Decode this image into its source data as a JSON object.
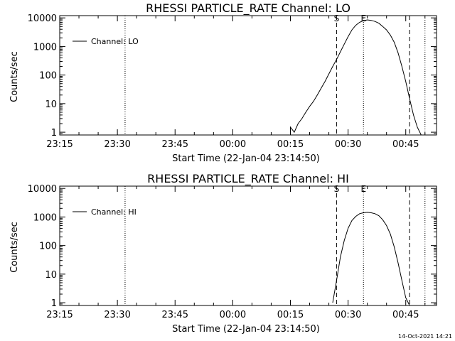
{
  "footer": {
    "timestamp": "14-Oct-2021 14:21"
  },
  "chart_data": [
    {
      "type": "line",
      "title": "RHESSI PARTICLE_RATE Channel: LO",
      "xlabel": "Start Time (22-Jan-04 23:14:50)",
      "ylabel": "Counts/sec",
      "yscale": "log",
      "xlim": [
        "23:15",
        "00:53"
      ],
      "ylim": [
        0.8,
        12000
      ],
      "x_ticks": [
        "23:15",
        "23:30",
        "23:45",
        "00:00",
        "00:15",
        "00:30",
        "00:45"
      ],
      "y_ticks": [
        "1",
        "10",
        "100",
        "1000",
        "10000"
      ],
      "legend": {
        "position": "top-left",
        "entries": [
          "Channel: LO"
        ]
      },
      "markers": {
        "S": "00:27",
        "E": "00:34"
      },
      "dashed_lines": [
        "00:27",
        "00:46"
      ],
      "dotted_lines": [
        "23:32",
        "00:34",
        "00:50"
      ],
      "series": [
        {
          "name": "Channel: LO",
          "x": [
            "00:15",
            "00:15",
            "00:16",
            "00:17",
            "00:18",
            "00:19",
            "00:20",
            "00:21",
            "00:22",
            "00:23",
            "00:24",
            "00:25",
            "00:26",
            "00:27",
            "00:28",
            "00:29",
            "00:30",
            "00:31",
            "00:32",
            "00:33",
            "00:34",
            "00:35",
            "00:36",
            "00:37",
            "00:38",
            "00:39",
            "00:40",
            "00:41",
            "00:42",
            "00:43",
            "00:44",
            "00:45",
            "00:46",
            "00:47",
            "00:48",
            "00:49"
          ],
          "y": [
            1,
            1.5,
            1,
            2,
            3,
            5,
            8,
            12,
            20,
            35,
            60,
            110,
            200,
            350,
            650,
            1200,
            2200,
            3800,
            5500,
            7000,
            8000,
            8500,
            8200,
            7500,
            6500,
            5000,
            3800,
            2500,
            1400,
            600,
            200,
            60,
            15,
            4,
            1.5,
            0.8
          ]
        }
      ]
    },
    {
      "type": "line",
      "title": "RHESSI PARTICLE_RATE Channel: HI",
      "xlabel": "Start Time (22-Jan-04 23:14:50)",
      "ylabel": "Counts/sec",
      "yscale": "log",
      "xlim": [
        "23:15",
        "00:53"
      ],
      "ylim": [
        0.8,
        12000
      ],
      "x_ticks": [
        "23:15",
        "23:30",
        "23:45",
        "00:00",
        "00:15",
        "00:30",
        "00:45"
      ],
      "y_ticks": [
        "1",
        "10",
        "100",
        "1000",
        "10000"
      ],
      "legend": {
        "position": "top-left",
        "entries": [
          "Channel: HI"
        ]
      },
      "markers": {
        "S": "00:27",
        "E": "00:34"
      },
      "dashed_lines": [
        "00:27",
        "00:46"
      ],
      "dotted_lines": [
        "23:32",
        "00:34",
        "00:50"
      ],
      "series": [
        {
          "name": "Channel: HI",
          "x": [
            "00:26",
            "00:27",
            "00:28",
            "00:29",
            "00:30",
            "00:31",
            "00:32",
            "00:33",
            "00:34",
            "00:35",
            "00:36",
            "00:37",
            "00:38",
            "00:39",
            "00:40",
            "00:41",
            "00:42",
            "00:43",
            "00:44",
            "00:45",
            "00:46"
          ],
          "y": [
            1,
            6,
            40,
            150,
            400,
            750,
            1050,
            1300,
            1400,
            1450,
            1400,
            1300,
            1100,
            800,
            500,
            250,
            90,
            25,
            6,
            1.5,
            0.8
          ]
        }
      ]
    }
  ]
}
